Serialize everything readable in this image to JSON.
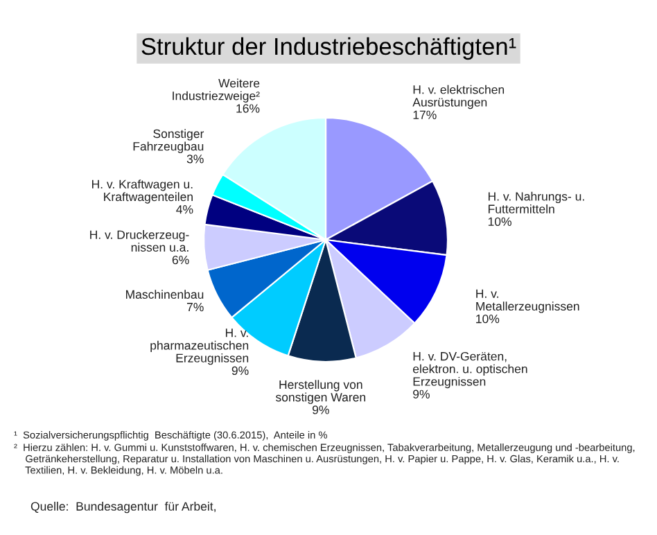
{
  "chart_data": {
    "type": "pie",
    "title": "Struktur der Industriebeschäftigten¹",
    "categories": [
      "H. v. elektrischen\nAusrüstungen",
      "H. v. Nahrungs- u.\nFuttermitteln",
      "H. v.\nMetallerzeugnissen",
      "H. v. DV-Geräten,\nelektron. u. optischen\nErzeugnissen",
      "Herstellung von\nsonstigen Waren",
      "H. v.\npharmazeutischen\nErzeugnissen",
      "Maschinenbau",
      "H. v. Druckerzeug-\nnissen u.a.",
      "H. v. Kraftwagen u.\nKraftwagenteilen",
      "Sonstiger\nFahrzeugbau",
      "Weitere\nIndustriezweige²"
    ],
    "values": [
      17,
      10,
      10,
      9,
      9,
      9,
      7,
      6,
      4,
      3,
      16
    ],
    "value_labels": [
      "17%",
      "10%",
      "10%",
      "9%",
      "9%",
      "9%",
      "7%",
      "6%",
      "4%",
      "3%",
      "16%"
    ],
    "colors": [
      "#9999ff",
      "#0a0a78",
      "#0000ee",
      "#ccccff",
      "#0a2a50",
      "#00ccff",
      "#0066cc",
      "#ccccff",
      "#000080",
      "#00ffff",
      "#ccffff"
    ],
    "annotations": [
      "¹  Sozialversicherungspflichtig  Beschäftigte (30.6.2015),  Anteile in %",
      "²  Hierzu zählen: H. v. Gummi u. Kunststoffwaren, H. v. chemischen Erzeugnissen, Tabakverarbeitung, Metallerzeugung und -bearbeitung,\n    Getränkeherstellung, Reparatur u. Installation von Maschinen u. Ausrüstungen, H. v. Papier u. Pappe, H. v. Glas, Keramik u.a., H. v.\n    Textilien, H. v. Bekleidung, H. v. Möbeln u.a.",
      "Quelle:  Bundesagentur  für Arbeit,"
    ]
  }
}
